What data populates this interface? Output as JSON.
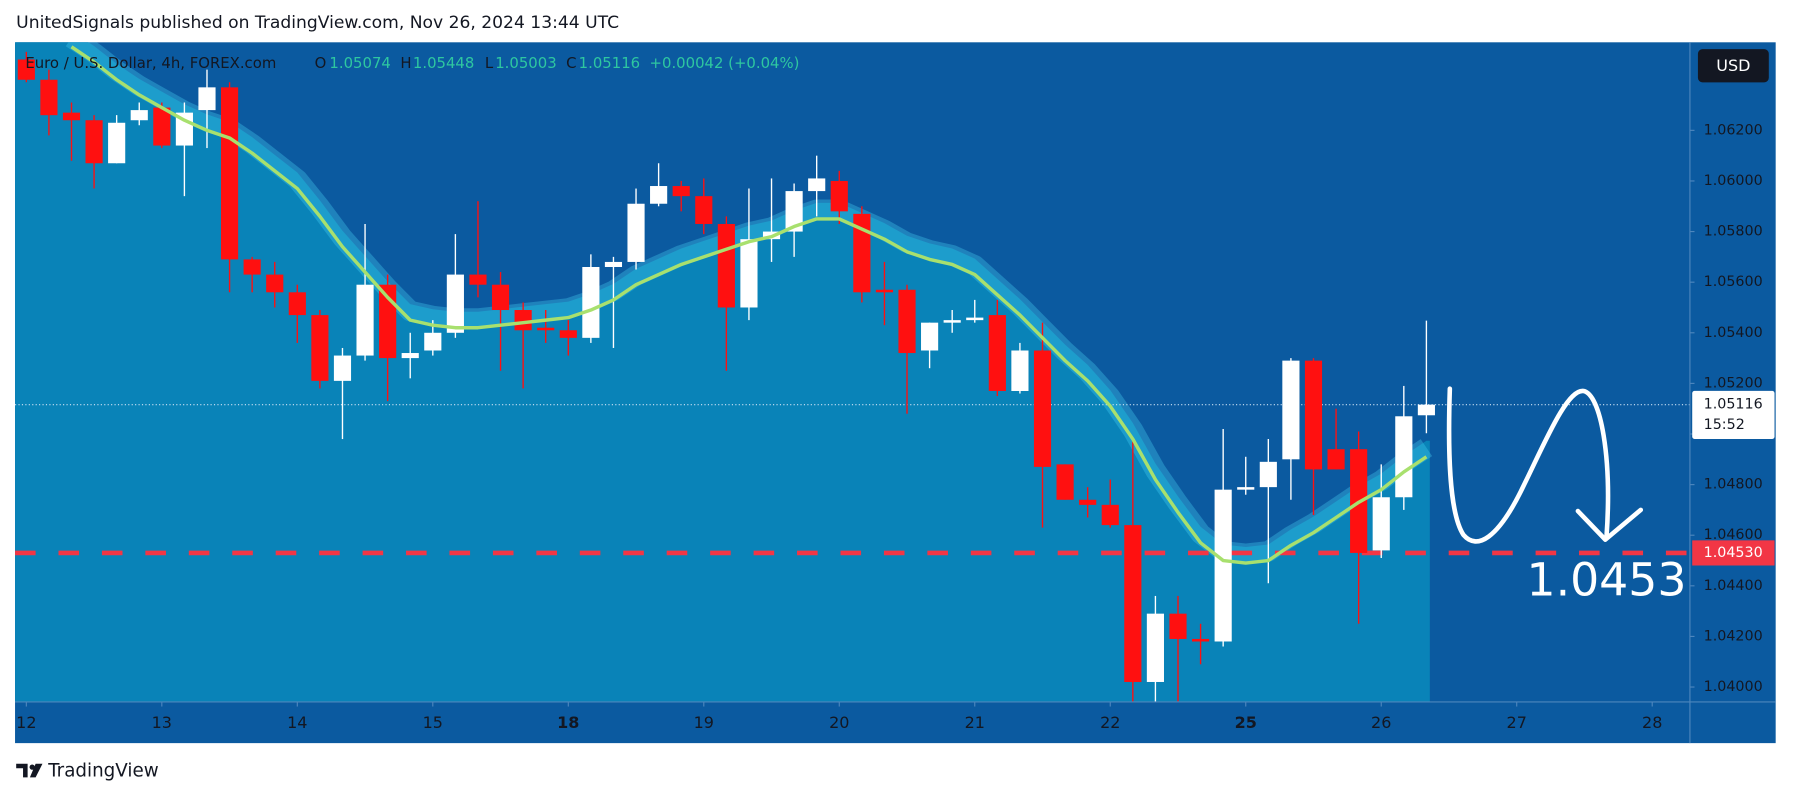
{
  "header": {
    "text": "UnitedSignals published on TradingView.com, Nov 26, 2024 13:44 UTC"
  },
  "footer": {
    "brand": "TradingView"
  },
  "chart_data": {
    "type": "candlestick",
    "title": "Euro / U.S. Dollar, 4h, FOREX.com",
    "ohlc_labels": [
      "O",
      "H",
      "L",
      "C"
    ],
    "change": "+0.00042 (+0.04%)",
    "currency": "USD",
    "countdown": "15:52",
    "up_color": "#ffffff",
    "down_color": "#ff1010",
    "open": [
      1.0648,
      1.064,
      1.0627,
      1.0624,
      1.0607,
      1.0624,
      1.0629,
      1.0614,
      1.0628,
      1.0637,
      1.0569,
      1.0563,
      1.0556,
      1.0547,
      1.0521,
      1.0531,
      1.0559,
      1.053,
      1.0533,
      1.054,
      1.0563,
      1.0559,
      1.0549,
      1.0542,
      1.0541,
      1.0538,
      1.0566,
      1.0568,
      1.0591,
      1.0598,
      1.0594,
      1.0583,
      1.055,
      1.0577,
      1.058,
      1.0596,
      1.06,
      1.0587,
      1.0557,
      1.0557,
      1.0533,
      1.0544,
      1.0545,
      1.0547,
      1.0517,
      1.0533,
      1.0488,
      1.0474,
      1.0472,
      1.0464,
      1.0402,
      1.0429,
      1.0419,
      1.0418,
      1.0478,
      1.0479,
      1.049,
      1.0529,
      1.0494,
      1.0494,
      1.0454,
      1.0475,
      1.05074
    ],
    "high": [
      1.0651,
      1.0644,
      1.0631,
      1.0626,
      1.0626,
      1.0631,
      1.0631,
      1.0631,
      1.0644,
      1.0639,
      1.057,
      1.0568,
      1.0559,
      1.0549,
      1.0534,
      1.0583,
      1.0563,
      1.054,
      1.0545,
      1.0579,
      1.0592,
      1.0564,
      1.0552,
      1.0549,
      1.0545,
      1.0571,
      1.057,
      1.0597,
      1.0607,
      1.06,
      1.0601,
      1.0586,
      1.0597,
      1.0601,
      1.0599,
      1.061,
      1.0604,
      1.059,
      1.0568,
      1.0559,
      1.0544,
      1.0549,
      1.0553,
      1.0553,
      1.0536,
      1.0544,
      1.0488,
      1.0479,
      1.0482,
      1.0498,
      1.0436,
      1.0436,
      1.0425,
      1.0502,
      1.0491,
      1.0498,
      1.053,
      1.053,
      1.051,
      1.0501,
      1.0488,
      1.0519,
      1.05448
    ],
    "low": [
      1.0639,
      1.0618,
      1.0608,
      1.0597,
      1.0607,
      1.0622,
      1.0613,
      1.0594,
      1.0613,
      1.0556,
      1.0556,
      1.055,
      1.0536,
      1.0518,
      1.0498,
      1.0529,
      1.0513,
      1.0522,
      1.0531,
      1.0538,
      1.0554,
      1.0525,
      1.0518,
      1.0536,
      1.0531,
      1.0536,
      1.0534,
      1.0565,
      1.059,
      1.0588,
      1.0579,
      1.0525,
      1.0545,
      1.0568,
      1.057,
      1.0586,
      1.0583,
      1.0552,
      1.0543,
      1.0508,
      1.0526,
      1.054,
      1.0544,
      1.0515,
      1.0516,
      1.0463,
      1.0474,
      1.0467,
      1.0463,
      1.0394,
      1.0394,
      1.0394,
      1.0409,
      1.0416,
      1.0476,
      1.0441,
      1.0474,
      1.0468,
      1.0486,
      1.0425,
      1.0451,
      1.047,
      1.05003
    ],
    "close": [
      1.064,
      1.0626,
      1.0624,
      1.0607,
      1.0623,
      1.0628,
      1.0614,
      1.0627,
      1.0637,
      1.0569,
      1.0563,
      1.0556,
      1.0547,
      1.0521,
      1.0531,
      1.0559,
      1.053,
      1.0532,
      1.054,
      1.0563,
      1.0559,
      1.0549,
      1.0541,
      1.0541,
      1.0538,
      1.0566,
      1.0568,
      1.0591,
      1.0598,
      1.0594,
      1.0583,
      1.055,
      1.0577,
      1.058,
      1.0596,
      1.0601,
      1.0588,
      1.0556,
      1.0556,
      1.0532,
      1.0544,
      1.0545,
      1.0546,
      1.0517,
      1.0533,
      1.0487,
      1.0474,
      1.0472,
      1.0464,
      1.0402,
      1.0429,
      1.0419,
      1.0418,
      1.0478,
      1.0479,
      1.0489,
      1.0529,
      1.0486,
      1.0486,
      1.0453,
      1.0475,
      1.0507,
      1.05116
    ],
    "ma": {
      "color": "#a8e06e",
      "values": [
        null,
        null,
        1.0653,
        1.0647,
        1.064,
        1.0634,
        1.0629,
        1.0624,
        1.062,
        1.0617,
        1.0611,
        1.0604,
        1.0597,
        1.0586,
        1.0574,
        1.0564,
        1.0554,
        1.0545,
        1.0543,
        1.0542,
        1.0542,
        1.0543,
        1.0544,
        1.0545,
        1.0546,
        1.0549,
        1.0553,
        1.0559,
        1.0563,
        1.0567,
        1.057,
        1.0573,
        1.0576,
        1.0578,
        1.0582,
        1.0585,
        1.0585,
        1.0581,
        1.0577,
        1.0572,
        1.0569,
        1.0567,
        1.0563,
        1.0555,
        1.0547,
        1.0538,
        1.0529,
        1.0521,
        1.0511,
        1.0498,
        1.0482,
        1.0469,
        1.0457,
        1.045,
        1.0449,
        1.045,
        1.0456,
        1.0461,
        1.0467,
        1.0473,
        1.0478,
        1.0485,
        1.0491
      ]
    },
    "xlim": [
      -0.5,
      73.67
    ],
    "xticks": [
      {
        "value": 0,
        "label": "12"
      },
      {
        "value": 6,
        "label": "13"
      },
      {
        "value": 12,
        "label": "14"
      },
      {
        "value": 18,
        "label": "15"
      },
      {
        "value": 24,
        "label": "18",
        "bold": true
      },
      {
        "value": 30,
        "label": "19"
      },
      {
        "value": 36,
        "label": "20"
      },
      {
        "value": 42,
        "label": "21"
      },
      {
        "value": 48,
        "label": "22"
      },
      {
        "value": 54,
        "label": "25",
        "bold": true
      },
      {
        "value": 60,
        "label": "26"
      },
      {
        "value": 66,
        "label": "27"
      },
      {
        "value": 72,
        "label": "28"
      }
    ],
    "ylim": [
      1.03941,
      1.06548
    ],
    "yticks": [
      {
        "value": 1.04,
        "label": "1.04000"
      },
      {
        "value": 1.042,
        "label": "1.04200"
      },
      {
        "value": 1.044,
        "label": "1.04400"
      },
      {
        "value": 1.046,
        "label": "1.04600"
      },
      {
        "value": 1.048,
        "label": "1.04800"
      },
      {
        "value": 1.05,
        "label": "1.05000"
      },
      {
        "value": 1.052,
        "label": "1.05200"
      },
      {
        "value": 1.054,
        "label": "1.05400"
      },
      {
        "value": 1.056,
        "label": "1.05600"
      },
      {
        "value": 1.058,
        "label": "1.05800"
      },
      {
        "value": 1.06,
        "label": "1.06000"
      },
      {
        "value": 1.062,
        "label": "1.06200"
      }
    ],
    "hline": {
      "value": 1.0453,
      "label": "1.04530",
      "color": "#f23645"
    },
    "annotation": {
      "text": "1.0453"
    }
  }
}
